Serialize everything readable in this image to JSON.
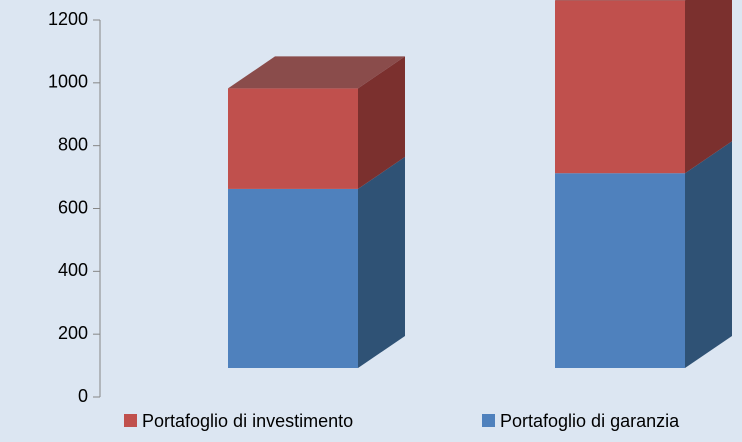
{
  "chart_data": {
    "type": "bar",
    "stacked": true,
    "categories": [
      null,
      null
    ],
    "series": [
      {
        "name": "Portafoglio di garanzia",
        "color": "#4f81bd",
        "side": "#2f5275",
        "values": [
          570,
          620
        ]
      },
      {
        "name": "Portafoglio di investimento",
        "color": "#c0504d",
        "side": "#7b302e",
        "values": [
          320,
          550
        ]
      }
    ],
    "legend_order": [
      1,
      0
    ],
    "ylim": [
      0,
      1200
    ],
    "yticks": [
      0,
      200,
      400,
      600,
      800,
      1000,
      1200
    ],
    "legend": "bottom"
  }
}
